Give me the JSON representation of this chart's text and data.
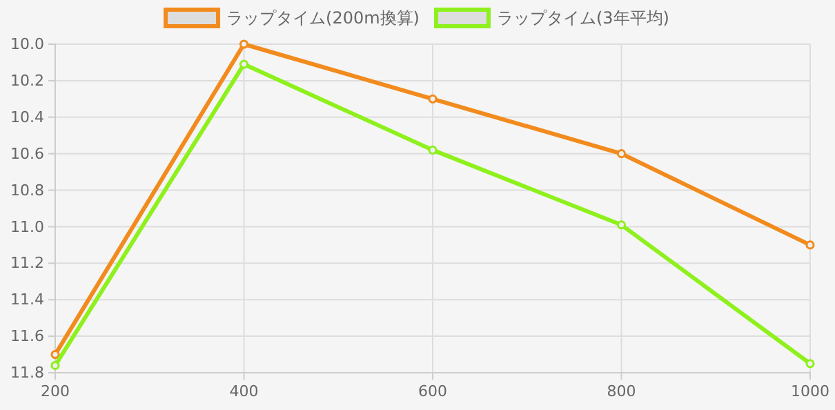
{
  "chart_data": {
    "type": "line",
    "x": [
      200,
      400,
      600,
      800,
      1000
    ],
    "series": [
      {
        "name": "ラップタイム(200m換算)",
        "color": "#f28b1e",
        "values": [
          11.7,
          10.0,
          10.3,
          10.6,
          11.1
        ]
      },
      {
        "name": "ラップタイム(3年平均)",
        "color": "#8ef01c",
        "values": [
          11.76,
          10.11,
          10.58,
          10.99,
          11.75
        ]
      }
    ],
    "xlim": [
      200,
      1000
    ],
    "xticks": [
      200,
      400,
      600,
      800,
      1000
    ],
    "ylim": [
      11.8,
      10.0
    ],
    "yticks": [
      {
        "value": 10.0,
        "label": "10.0"
      },
      {
        "value": 10.2,
        "label": "10.2"
      },
      {
        "value": 10.4,
        "label": "10.4"
      },
      {
        "value": 10.6,
        "label": "10.6"
      },
      {
        "value": 10.8,
        "label": "10.8"
      },
      {
        "value": 11.0,
        "label": "11.0"
      },
      {
        "value": 11.2,
        "label": "11.2"
      },
      {
        "value": 11.4,
        "label": "11.4"
      },
      {
        "value": 11.6,
        "label": "11.6"
      },
      {
        "value": 11.8,
        "label": "11.8"
      }
    ],
    "grid": true,
    "legend": "top",
    "marker": "circle",
    "line_style": "solid"
  }
}
